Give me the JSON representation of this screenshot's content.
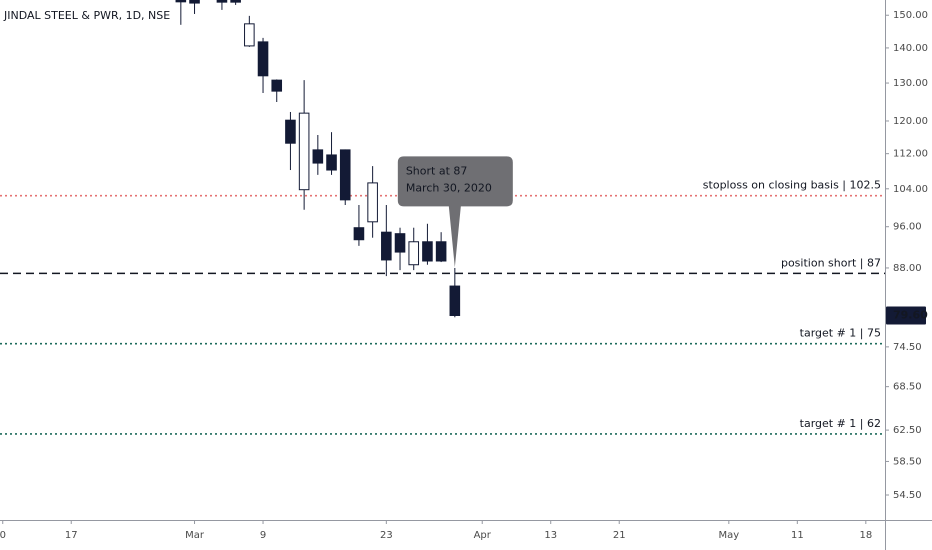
{
  "chart_data": {
    "type": "candlestick",
    "title": "JINDAL STEEL & PWR, 1D, NSE",
    "log_scale": true,
    "grid": false,
    "up_color": "#ffffff",
    "down_color": "#131a35",
    "x": [
      13,
      14,
      16,
      17,
      18,
      19,
      20,
      21,
      22,
      23,
      24,
      25,
      26,
      27,
      28,
      29,
      30,
      31,
      32,
      33
    ],
    "open": [
      157,
      156,
      156,
      155.5,
      140.6,
      141.8,
      130.8,
      120.2,
      103.8,
      112.9,
      111.7,
      112.9,
      95.8,
      97.0,
      94.9,
      94.6,
      88.6,
      93.0,
      93.0,
      84.7
    ],
    "high": [
      160,
      158,
      157,
      156,
      149.8,
      143.0,
      131.0,
      122.3,
      130.8,
      116.5,
      117.2,
      113.0,
      100.5,
      109.1,
      100.5,
      95.8,
      95.8,
      96.6,
      94.9,
      88.0
    ],
    "low": [
      147.0,
      150.4,
      151.7,
      153.3,
      140.3,
      127.3,
      124.9,
      108.2,
      99.5,
      107.1,
      107.1,
      100.5,
      92.2,
      93.8,
      86.5,
      87.6,
      87.6,
      88.6,
      89.1,
      79.3
    ],
    "close": [
      154.3,
      153.9,
      154.2,
      154.2,
      147.3,
      132.0,
      127.8,
      114.5,
      122.0,
      109.8,
      108.2,
      101.6,
      93.4,
      105.3,
      89.5,
      91.0,
      93.0,
      89.3,
      89.3,
      79.6
    ],
    "xlim": [
      -0.2,
      64.4
    ],
    "ylim": [
      51.7,
      154.9
    ],
    "xticks": [
      {
        "value": 0,
        "label": "0"
      },
      {
        "value": 5,
        "label": "17"
      },
      {
        "value": 14,
        "label": "Mar"
      },
      {
        "value": 19,
        "label": "9"
      },
      {
        "value": 28,
        "label": "23"
      },
      {
        "value": 35,
        "label": "Apr"
      },
      {
        "value": 40,
        "label": "13"
      },
      {
        "value": 45,
        "label": "21"
      },
      {
        "value": 53,
        "label": "May"
      },
      {
        "value": 58,
        "label": "11"
      },
      {
        "value": 63,
        "label": "18"
      }
    ],
    "yticks": [
      {
        "value": 150,
        "label": "150.00"
      },
      {
        "value": 140,
        "label": "140.00"
      },
      {
        "value": 130,
        "label": "130.00"
      },
      {
        "value": 120,
        "label": "120.00"
      },
      {
        "value": 112,
        "label": "112.00"
      },
      {
        "value": 104,
        "label": "104.00"
      },
      {
        "value": 96,
        "label": "96.00"
      },
      {
        "value": 88,
        "label": "88.00"
      },
      {
        "value": 74.5,
        "label": "74.50"
      },
      {
        "value": 68.5,
        "label": "68.50"
      },
      {
        "value": 62.5,
        "label": "62.50"
      },
      {
        "value": 58.5,
        "label": "58.50"
      },
      {
        "value": 54.5,
        "label": "54.50"
      }
    ],
    "last_price": {
      "value": 79.6,
      "label": "79.60"
    },
    "hlines": [
      {
        "label": "stoploss on closing basis | 102.5",
        "value": 102.5,
        "color": "#e57373",
        "style": "dotted"
      },
      {
        "label": "position short | 87",
        "value": 87,
        "color": "#131722",
        "style": "dashed"
      },
      {
        "label": "target # 1 | 75",
        "value": 75,
        "color": "#1e6b5c",
        "style": "dotted"
      },
      {
        "label": "target # 1 | 62",
        "value": 62,
        "color": "#1e6b5c",
        "style": "dotted"
      }
    ],
    "callout": {
      "lines": [
        "Short at 87",
        "March 30, 2020"
      ],
      "x": 33,
      "value": 87
    }
  }
}
